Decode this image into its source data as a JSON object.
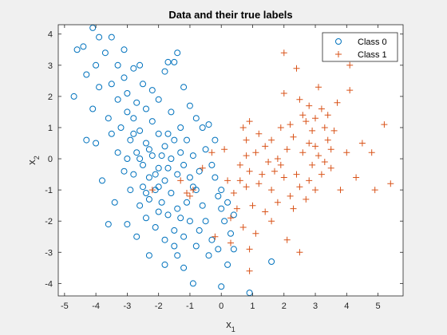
{
  "chart_data": {
    "type": "scatter",
    "title": "Data and their true labels",
    "xlabel_base": "x",
    "xlabel_sub": "1",
    "ylabel_base": "x",
    "ylabel_sub": "2",
    "xlim": [
      -5.2,
      5.8
    ],
    "ylim": [
      -4.4,
      4.3
    ],
    "xticks": [
      -5,
      -4,
      -3,
      -2,
      -1,
      0,
      1,
      2,
      3,
      4,
      5
    ],
    "yticks": [
      -4,
      -3,
      -2,
      -1,
      0,
      1,
      2,
      3,
      4
    ],
    "grid": false,
    "legend_position": "top-right",
    "colors": {
      "class0": "#0072BD",
      "class1": "#D95319",
      "axis": "#262626",
      "background": "#ffffff"
    },
    "series": [
      {
        "name": "Class 0",
        "marker": "circle",
        "cluster_note": "dense cloud centered near (-2, 0), ~650 points",
        "points": [
          [
            -4.7,
            2.0
          ],
          [
            -4.6,
            3.5
          ],
          [
            -4.4,
            3.6
          ],
          [
            -4.3,
            2.7
          ],
          [
            -4.1,
            4.2
          ],
          [
            -3.9,
            3.9
          ],
          [
            -4.0,
            3.0
          ],
          [
            -3.7,
            3.4
          ],
          [
            -3.5,
            3.9
          ],
          [
            -3.3,
            3.0
          ],
          [
            -3.1,
            3.5
          ],
          [
            -3.9,
            2.3
          ],
          [
            -3.5,
            2.4
          ],
          [
            -3.1,
            2.6
          ],
          [
            -2.8,
            2.9
          ],
          [
            -2.6,
            3.0
          ],
          [
            -1.8,
            2.8
          ],
          [
            -1.7,
            3.1
          ],
          [
            -1.4,
            3.4
          ],
          [
            -1.5,
            3.1
          ],
          [
            -1.2,
            2.3
          ],
          [
            -1.0,
            1.7
          ],
          [
            -0.8,
            1.3
          ],
          [
            -0.6,
            1.0
          ],
          [
            -0.5,
            0.3
          ],
          [
            -0.3,
            -0.2
          ],
          [
            -0.2,
            -0.6
          ],
          [
            -0.1,
            -1.2
          ],
          [
            0.0,
            -1.6
          ],
          [
            0.1,
            -2.0
          ],
          [
            0.3,
            -2.4
          ],
          [
            0.4,
            -2.9
          ],
          [
            0.2,
            -3.4
          ],
          [
            0.0,
            -4.1
          ],
          [
            0.9,
            -4.3
          ],
          [
            1.6,
            -3.3
          ],
          [
            -0.4,
            -3.1
          ],
          [
            -0.8,
            -2.8
          ],
          [
            -1.2,
            -3.5
          ],
          [
            -0.9,
            -4.0
          ],
          [
            -1.4,
            -3.1
          ],
          [
            -1.8,
            -3.4
          ],
          [
            -2.3,
            -3.1
          ],
          [
            -2.7,
            -2.5
          ],
          [
            -3.0,
            -2.1
          ],
          [
            -3.6,
            -2.1
          ],
          [
            -3.4,
            -1.4
          ],
          [
            -3.8,
            -0.7
          ],
          [
            -4.0,
            0.5
          ],
          [
            -4.1,
            1.6
          ],
          [
            -4.3,
            0.6
          ],
          [
            -3.6,
            1.3
          ],
          [
            -3.3,
            1.9
          ],
          [
            -3.0,
            2.1
          ],
          [
            -2.5,
            2.4
          ],
          [
            -2.2,
            2.2
          ],
          [
            -2.0,
            1.9
          ],
          [
            -1.6,
            1.5
          ],
          [
            -1.3,
            1.0
          ],
          [
            -1.1,
            0.6
          ],
          [
            -0.9,
            0.1
          ],
          [
            -0.7,
            -0.4
          ],
          [
            -0.9,
            -0.9
          ],
          [
            -1.1,
            -1.4
          ],
          [
            -1.3,
            -1.9
          ],
          [
            -1.5,
            -2.3
          ],
          [
            -1.8,
            -2.6
          ],
          [
            -2.1,
            -2.2
          ],
          [
            -2.4,
            -1.9
          ],
          [
            -2.6,
            -1.5
          ],
          [
            -2.9,
            -1.0
          ],
          [
            -3.1,
            -0.4
          ],
          [
            -3.3,
            0.2
          ],
          [
            -3.5,
            0.8
          ],
          [
            -2.8,
            1.3
          ],
          [
            -2.6,
            0.9
          ],
          [
            -2.4,
            0.5
          ],
          [
            -2.2,
            0.1
          ],
          [
            -2.0,
            -0.3
          ],
          [
            -1.8,
            -0.7
          ],
          [
            -1.6,
            -1.1
          ],
          [
            -1.4,
            -0.5
          ],
          [
            -1.6,
            0.0
          ],
          [
            -1.8,
            0.4
          ],
          [
            -2.0,
            0.8
          ],
          [
            -2.2,
            1.2
          ],
          [
            -2.4,
            1.6
          ],
          [
            -2.7,
            1.8
          ],
          [
            -3.0,
            1.5
          ],
          [
            -3.2,
            1.0
          ],
          [
            -2.9,
            0.6
          ],
          [
            -2.7,
            0.2
          ],
          [
            -2.5,
            -0.2
          ],
          [
            -2.3,
            -0.6
          ],
          [
            -2.1,
            -1.0
          ],
          [
            -1.9,
            -1.4
          ],
          [
            -1.7,
            -1.8
          ],
          [
            -2.0,
            -1.7
          ],
          [
            -2.3,
            -1.3
          ],
          [
            -2.5,
            -0.9
          ],
          [
            -2.8,
            -0.5
          ],
          [
            -3.0,
            0.0
          ],
          [
            -1.5,
            0.6
          ],
          [
            -1.3,
            0.2
          ],
          [
            -1.2,
            -0.2
          ],
          [
            -1.0,
            -0.6
          ],
          [
            -0.8,
            -1.0
          ],
          [
            -0.6,
            -1.5
          ],
          [
            -0.5,
            -2.0
          ],
          [
            -0.7,
            -2.3
          ],
          [
            -1.0,
            -2.0
          ],
          [
            -1.2,
            -2.5
          ],
          [
            -1.5,
            -2.8
          ],
          [
            -0.3,
            -2.6
          ],
          [
            -0.1,
            -2.9
          ],
          [
            0.4,
            -1.8
          ],
          [
            0.2,
            -1.4
          ],
          [
            0.0,
            -1.0
          ],
          [
            -0.2,
            0.6
          ],
          [
            -0.4,
            1.1
          ],
          [
            -2.3,
            0.3
          ],
          [
            -1.7,
            -0.3
          ],
          [
            -2.1,
            -0.5
          ],
          [
            -1.9,
            0.1
          ],
          [
            -2.6,
            0.0
          ],
          [
            -2.0,
            -0.9
          ],
          [
            -1.7,
            0.8
          ],
          [
            -2.4,
            -1.1
          ],
          [
            -1.4,
            -1.6
          ],
          [
            -2.8,
            0.8
          ]
        ]
      },
      {
        "name": "Class 1",
        "marker": "plus",
        "points": [
          [
            2.0,
            3.4
          ],
          [
            2.4,
            2.9
          ],
          [
            3.1,
            2.3
          ],
          [
            4.1,
            3.0
          ],
          [
            4.1,
            2.2
          ],
          [
            2.0,
            2.1
          ],
          [
            2.5,
            1.9
          ],
          [
            2.8,
            1.7
          ],
          [
            3.2,
            1.6
          ],
          [
            3.4,
            1.4
          ],
          [
            3.0,
            1.3
          ],
          [
            2.7,
            1.2
          ],
          [
            3.3,
            1.0
          ],
          [
            2.9,
            0.9
          ],
          [
            3.6,
            0.9
          ],
          [
            2.2,
            1.1
          ],
          [
            1.9,
            1.0
          ],
          [
            0.9,
            1.2
          ],
          [
            0.7,
            1.0
          ],
          [
            1.2,
            0.8
          ],
          [
            1.6,
            0.6
          ],
          [
            2.3,
            0.7
          ],
          [
            2.8,
            0.5
          ],
          [
            3.0,
            0.4
          ],
          [
            3.5,
            0.3
          ],
          [
            4.0,
            0.2
          ],
          [
            4.5,
            0.5
          ],
          [
            4.8,
            0.2
          ],
          [
            5.2,
            1.1
          ],
          [
            2.1,
            0.3
          ],
          [
            2.6,
            0.2
          ],
          [
            3.1,
            0.1
          ],
          [
            3.3,
            -0.1
          ],
          [
            1.8,
            0.0
          ],
          [
            1.5,
            -0.1
          ],
          [
            1.1,
            0.2
          ],
          [
            0.8,
            0.1
          ],
          [
            0.6,
            -0.2
          ],
          [
            0.9,
            -0.4
          ],
          [
            1.3,
            -0.5
          ],
          [
            1.7,
            -0.4
          ],
          [
            2.0,
            -0.6
          ],
          [
            2.4,
            -0.5
          ],
          [
            2.8,
            -0.7
          ],
          [
            3.2,
            -0.5
          ],
          [
            3.5,
            -0.3
          ],
          [
            4.3,
            -0.6
          ],
          [
            4.9,
            -1.0
          ],
          [
            5.4,
            -0.8
          ],
          [
            3.8,
            -1.0
          ],
          [
            3.0,
            -1.0
          ],
          [
            2.5,
            -0.9
          ],
          [
            2.2,
            -1.2
          ],
          [
            1.6,
            -1.0
          ],
          [
            1.2,
            -0.8
          ],
          [
            0.8,
            -0.9
          ],
          [
            0.4,
            -1.1
          ],
          [
            0.2,
            -0.7
          ],
          [
            0.5,
            -1.6
          ],
          [
            1.0,
            -1.5
          ],
          [
            1.4,
            -1.7
          ],
          [
            1.8,
            -1.4
          ],
          [
            2.3,
            -1.6
          ],
          [
            2.7,
            -1.3
          ],
          [
            1.6,
            -2.0
          ],
          [
            1.1,
            -2.4
          ],
          [
            0.7,
            -2.2
          ],
          [
            0.3,
            -2.7
          ],
          [
            -0.2,
            -2.5
          ],
          [
            0.9,
            -2.9
          ],
          [
            2.1,
            -2.6
          ],
          [
            2.5,
            -3.0
          ],
          [
            0.9,
            -3.6
          ],
          [
            -1.1,
            -1.1
          ],
          [
            -1.0,
            -1.2
          ],
          [
            -0.9,
            -1.0
          ],
          [
            -1.3,
            -0.7
          ],
          [
            -2.2,
            -1.0
          ],
          [
            -0.6,
            -0.3
          ],
          [
            -0.3,
            0.2
          ],
          [
            0.1,
            0.3
          ],
          [
            1.4,
            0.4
          ],
          [
            2.6,
            1.4
          ],
          [
            3.7,
            1.8
          ],
          [
            0.8,
            0.6
          ],
          [
            1.9,
            -0.2
          ],
          [
            0.3,
            -1.9
          ],
          [
            0.6,
            -0.7
          ],
          [
            3.4,
            0.6
          ],
          [
            2.9,
            -0.2
          ]
        ]
      }
    ]
  }
}
